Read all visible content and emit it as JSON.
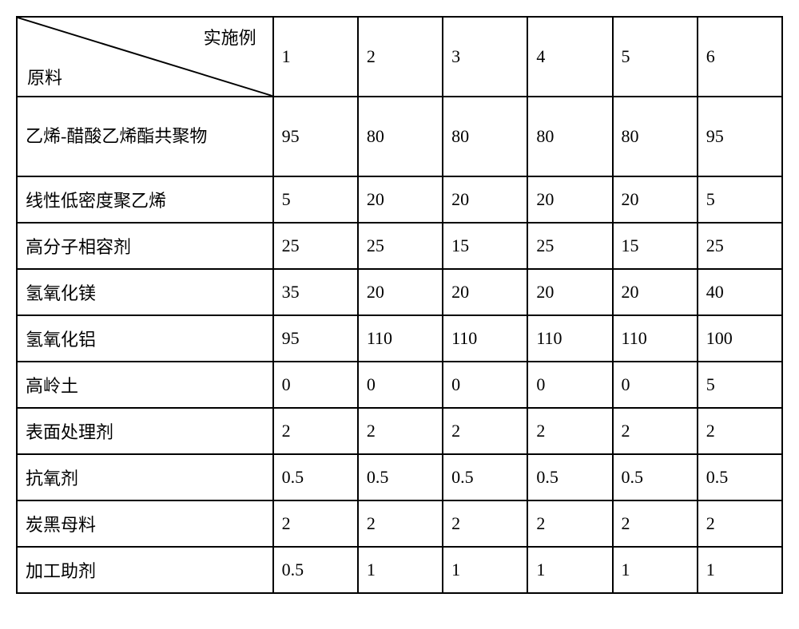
{
  "table": {
    "type": "table",
    "header_diag_top": "实施例",
    "header_diag_bottom": "原料",
    "col_headers": [
      "1",
      "2",
      "3",
      "4",
      "5",
      "6"
    ],
    "rows": [
      {
        "label": "乙烯-醋酸乙烯酯共聚物",
        "values": [
          "95",
          "80",
          "80",
          "80",
          "80",
          "95"
        ],
        "twoLine": true
      },
      {
        "label": "线性低密度聚乙烯",
        "values": [
          "5",
          "20",
          "20",
          "20",
          "20",
          "5"
        ]
      },
      {
        "label": "高分子相容剂",
        "values": [
          "25",
          "25",
          "15",
          "25",
          "15",
          "25"
        ]
      },
      {
        "label": "氢氧化镁",
        "values": [
          "35",
          "20",
          "20",
          "20",
          "20",
          "40"
        ]
      },
      {
        "label": "氢氧化铝",
        "values": [
          "95",
          "110",
          "110",
          "110",
          "110",
          "100"
        ]
      },
      {
        "label": "高岭土",
        "values": [
          "0",
          "0",
          "0",
          "0",
          "0",
          "5"
        ]
      },
      {
        "label": "表面处理剂",
        "values": [
          "2",
          "2",
          "2",
          "2",
          "2",
          "2"
        ]
      },
      {
        "label": "抗氧剂",
        "values": [
          "0.5",
          "0.5",
          "0.5",
          "0.5",
          "0.5",
          "0.5"
        ]
      },
      {
        "label": "炭黑母料",
        "values": [
          "2",
          "2",
          "2",
          "2",
          "2",
          "2"
        ]
      },
      {
        "label": "加工助剂",
        "values": [
          "0.5",
          "1",
          "1",
          "1",
          "1",
          "1"
        ]
      }
    ],
    "font_size": 22,
    "border_color": "#000000",
    "background_color": "#ffffff",
    "text_color": "#000000",
    "row_header_width": 320,
    "data_col_width": 106,
    "header_row_height": 100,
    "data_row_height": 56
  }
}
